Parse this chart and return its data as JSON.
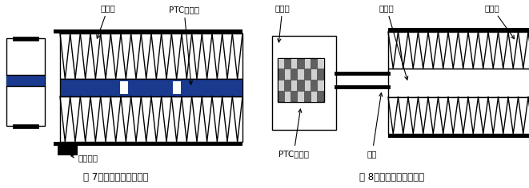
{
  "fig_width": 6.61,
  "fig_height": 2.36,
  "bg_color": "#ffffff",
  "line_color": "#000000",
  "blue_color": "#1a3a8f",
  "caption1": "图 7。带电型空气加热器",
  "caption2": "图 8。绝缘型空气加热器",
  "label_san_re_qi_1": "散热器",
  "label_ptc_1": "PTC陶瓷片",
  "label_dianji": "电极插头",
  "label_jyc": "绝缘层",
  "label_luwai": "铝外壳",
  "label_san_re_qi_2": "散热器",
  "label_ptc_2": "PTC陶瓷片",
  "label_dianxian": "电线"
}
